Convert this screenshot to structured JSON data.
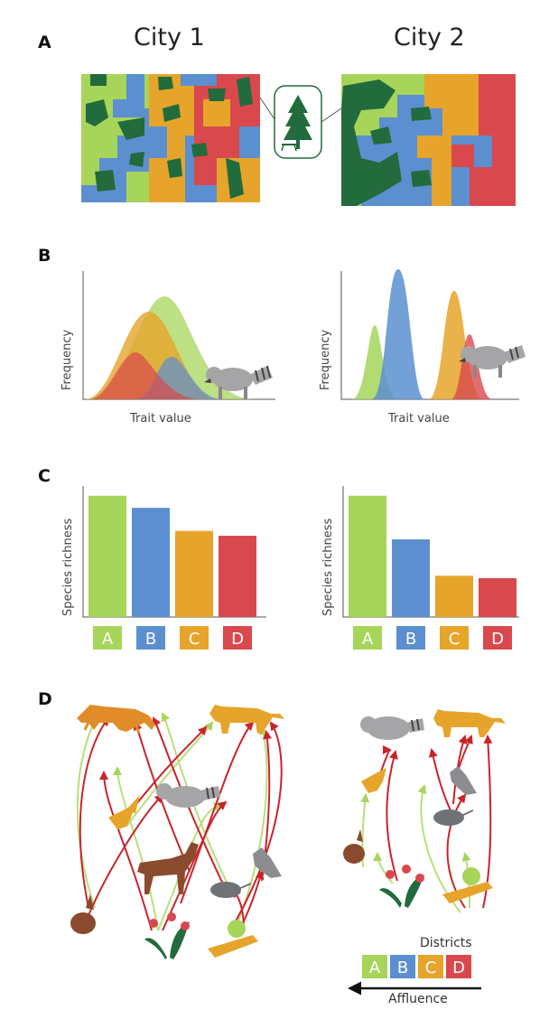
{
  "panels": {
    "a": "A",
    "b": "B",
    "c": "C",
    "d": "D"
  },
  "cities": {
    "city1": "City 1",
    "city2": "City 2"
  },
  "colors": {
    "A": "#a6d55a",
    "B": "#5b8fd0",
    "C": "#e6a42a",
    "D": "#d9484d",
    "park": "#226b3c",
    "arrow_green": "#b9df7a",
    "arrow_red": "#c9242b"
  },
  "icons": {
    "park": "tree-picnic-table-icon",
    "animals": [
      "coyote-icon",
      "mountain-lion-icon",
      "raccoon-icon",
      "hawk-icon",
      "deer-icon",
      "pigeon-icon",
      "rat-icon",
      "rabbit-icon",
      "plant-icon",
      "food-waste-icon"
    ]
  },
  "trait_panel": {
    "xlabel": "Trait value",
    "ylabel": "Frequency"
  },
  "chart_data": [
    {
      "type": "bar",
      "title": "",
      "xlabel": "",
      "ylabel": "Species richness",
      "categories": [
        "A",
        "B",
        "C",
        "D"
      ],
      "values": [
        100,
        90,
        71,
        67
      ],
      "ylim": [
        0,
        108
      ]
    },
    {
      "type": "bar",
      "title": "",
      "xlabel": "",
      "ylabel": "Species richness",
      "categories": [
        "A",
        "B",
        "C",
        "D"
      ],
      "values": [
        100,
        64,
        34,
        32
      ],
      "ylim": [
        0,
        108
      ]
    }
  ],
  "legend": {
    "title": "Districts",
    "items": [
      "A",
      "B",
      "C",
      "D"
    ],
    "arrow_label": "Affluence"
  }
}
